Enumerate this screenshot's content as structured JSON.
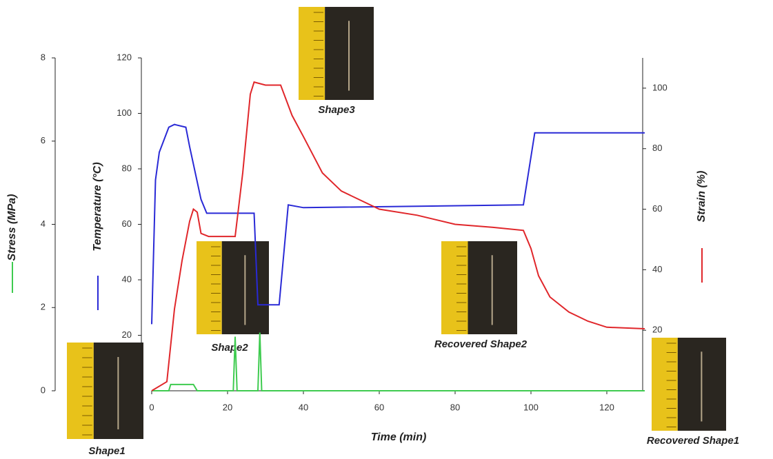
{
  "chart_data": {
    "type": "line",
    "xlabel": "Time (min)",
    "ylabel": "Stress (MPa)",
    "y2label": "Temperature (°C)",
    "y3label": "Strain (%)",
    "xlim": [
      0,
      130
    ],
    "xticks": [
      0,
      20,
      40,
      60,
      80,
      100,
      120
    ],
    "ylim": [
      0,
      8
    ],
    "yticks": [
      0,
      2,
      4,
      6,
      8
    ],
    "y2lim": [
      0,
      120
    ],
    "y2ticks": [
      20,
      40,
      60,
      80,
      100,
      120
    ],
    "y3lim": [
      0,
      110
    ],
    "y3ticks": [
      20,
      40,
      60,
      80,
      100
    ],
    "series": [
      {
        "color": "#3ecb4f",
        "axis": "y",
        "x": [
          0,
          4.5,
          5,
          11,
          12,
          21.5,
          22,
          22.5,
          28,
          28.5,
          29,
          130
        ],
        "values": [
          0,
          0,
          0.15,
          0.15,
          0,
          0,
          1.3,
          0,
          0,
          1.4,
          0,
          0
        ]
      },
      {
        "color": "#2929d6",
        "axis": "y2",
        "x": [
          0,
          1,
          2,
          4.5,
          6,
          9,
          10,
          13,
          14.5,
          27,
          28,
          33.6,
          36,
          40,
          98,
          101,
          130
        ],
        "values": [
          24,
          76,
          86,
          95,
          96,
          95,
          88,
          69,
          64,
          64,
          31,
          31,
          67,
          66,
          67,
          93,
          93
        ]
      },
      {
        "color": "#e0262a",
        "axis": "y3",
        "x": [
          0,
          4,
          6,
          8,
          10,
          11,
          12,
          13,
          15,
          22,
          24,
          26,
          27,
          30,
          34,
          37,
          40,
          45,
          50,
          55,
          60,
          70,
          80,
          90,
          98,
          100,
          102,
          105,
          110,
          115,
          120,
          130
        ],
        "values": [
          0,
          3,
          27,
          43,
          56,
          60,
          59,
          52,
          51,
          51,
          72,
          98,
          102,
          101,
          101,
          91,
          84,
          72,
          66,
          63,
          60,
          58,
          55,
          54,
          53,
          47,
          38,
          31,
          26,
          23,
          21,
          20.5
        ]
      }
    ],
    "annotations": [
      "Shape1",
      "Shape2",
      "Shape3",
      "Recovered Shape2",
      "Recovered Shape1"
    ]
  }
}
